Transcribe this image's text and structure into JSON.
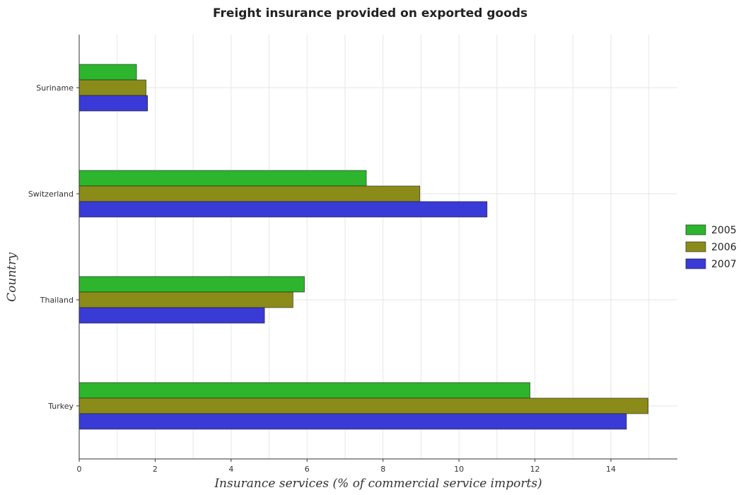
{
  "chart_data": {
    "type": "bar",
    "orientation": "horizontal",
    "title": "Freight insurance provided on exported goods",
    "xlabel": "Insurance services (% of commercial service imports)",
    "ylabel": "Country",
    "categories": [
      "Suriname",
      "Switzerland",
      "Thailand",
      "Turkey"
    ],
    "series": [
      {
        "name": "2005",
        "color": "#2db52d",
        "values": [
          1.51,
          7.56,
          5.93,
          11.87
        ]
      },
      {
        "name": "2006",
        "color": "#8b8b1a",
        "values": [
          1.76,
          8.97,
          5.63,
          14.98
        ]
      },
      {
        "name": "2007",
        "color": "#3a3ad6",
        "values": [
          1.8,
          10.74,
          4.88,
          14.41
        ]
      }
    ],
    "xlim": [
      0,
      15.75
    ],
    "xticks": [
      0,
      2,
      4,
      6,
      8,
      10,
      12,
      14
    ],
    "grid": true,
    "legend": "right"
  }
}
